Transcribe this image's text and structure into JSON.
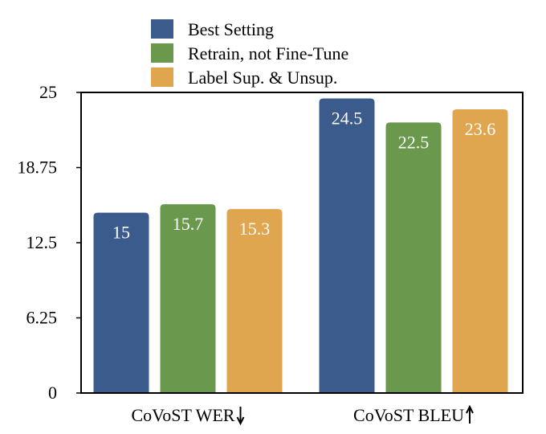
{
  "chart_data": {
    "type": "bar",
    "categories": [
      "CoVoST WER",
      "CoVoST BLEU"
    ],
    "category_arrows": [
      "down",
      "up"
    ],
    "series": [
      {
        "name": "Best Setting",
        "values": [
          15,
          24.5
        ],
        "labels": [
          "15",
          "24.5"
        ],
        "color": "#3b5b8c"
      },
      {
        "name": "Retrain, not Fine-Tune",
        "values": [
          15.7,
          22.5
        ],
        "labels": [
          "15.7",
          "22.5"
        ],
        "color": "#6a994e"
      },
      {
        "name": "Label Sup. & Unsup.",
        "values": [
          15.3,
          23.6
        ],
        "labels": [
          "15.3",
          "23.6"
        ],
        "color": "#e0a54f"
      }
    ],
    "ylim": [
      0,
      25
    ],
    "yticks": [
      "0",
      "6.25",
      "12.5",
      "18.75",
      "25"
    ],
    "legend_position": "top",
    "grid": false
  }
}
